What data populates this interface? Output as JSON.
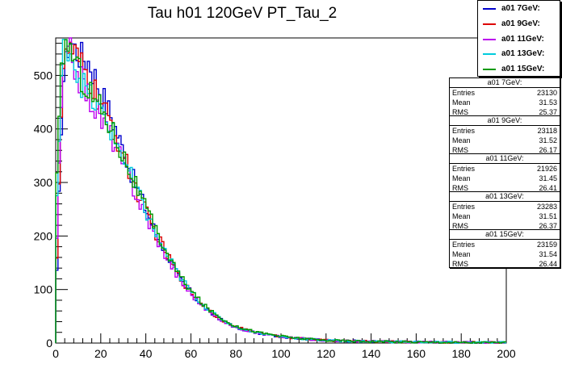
{
  "chart_data": {
    "type": "histogram-step",
    "title": "Tau h01 120GeV PT_Tau_2",
    "xlabel": "",
    "ylabel": "",
    "xlim": [
      0,
      200
    ],
    "ylim": [
      0,
      570
    ],
    "x_ticks": [
      "0",
      "20",
      "40",
      "60",
      "80",
      "100",
      "120",
      "140",
      "160",
      "180",
      "200"
    ],
    "y_ticks": [
      "0",
      "100",
      "200",
      "300",
      "400",
      "500"
    ],
    "x_tick_values": [
      0,
      20,
      40,
      60,
      80,
      100,
      120,
      140,
      160,
      180,
      200
    ],
    "y_tick_values": [
      0,
      100,
      200,
      300,
      400,
      500
    ],
    "bin_width": 1,
    "series": [
      {
        "name": "a01 7GeV:",
        "color": "#0000cc",
        "x": [
          0,
          3,
          6,
          10,
          15,
          20,
          25,
          30,
          35,
          40,
          45,
          50,
          55,
          60,
          65,
          70,
          75,
          80,
          90,
          100,
          110,
          120,
          140,
          160,
          180,
          200
        ],
        "y": [
          60,
          480,
          570,
          540,
          525,
          470,
          420,
          360,
          300,
          250,
          200,
          160,
          120,
          95,
          70,
          52,
          40,
          28,
          18,
          12,
          8,
          5,
          3,
          2,
          1,
          1
        ]
      },
      {
        "name": "a01 9GeV:",
        "color": "#dd0000",
        "x": [
          0,
          3,
          6,
          10,
          15,
          20,
          25,
          30,
          35,
          40,
          45,
          50,
          55,
          60,
          65,
          70,
          75,
          80,
          90,
          100,
          110,
          120,
          140,
          160,
          180,
          200
        ],
        "y": [
          100,
          500,
          555,
          525,
          490,
          445,
          405,
          350,
          295,
          245,
          200,
          160,
          122,
          95,
          72,
          54,
          40,
          30,
          19,
          12,
          8,
          5,
          3,
          2,
          1,
          1
        ]
      },
      {
        "name": "a01 11GeV:",
        "color": "#bb00ee",
        "x": [
          0,
          3,
          6,
          10,
          15,
          20,
          25,
          30,
          35,
          40,
          45,
          50,
          55,
          60,
          65,
          70,
          75,
          80,
          90,
          100,
          110,
          120,
          140,
          160,
          180,
          200
        ],
        "y": [
          140,
          500,
          550,
          500,
          460,
          420,
          385,
          335,
          285,
          235,
          195,
          155,
          118,
          92,
          70,
          52,
          39,
          29,
          18,
          12,
          8,
          5,
          3,
          2,
          1,
          1
        ]
      },
      {
        "name": "a01 13GeV:",
        "color": "#00ccdd",
        "x": [
          0,
          3,
          6,
          10,
          15,
          20,
          25,
          30,
          35,
          40,
          45,
          50,
          55,
          60,
          65,
          70,
          75,
          80,
          90,
          100,
          110,
          120,
          140,
          160,
          180,
          200
        ],
        "y": [
          220,
          540,
          560,
          500,
          460,
          430,
          395,
          345,
          295,
          245,
          200,
          160,
          125,
          97,
          73,
          55,
          41,
          30,
          19,
          12,
          8,
          5,
          3,
          2,
          1,
          1
        ]
      },
      {
        "name": "a01 15GeV:",
        "color": "#009900",
        "x": [
          0,
          3,
          6,
          10,
          15,
          20,
          25,
          30,
          35,
          40,
          45,
          50,
          55,
          60,
          65,
          70,
          75,
          80,
          90,
          100,
          110,
          120,
          140,
          160,
          180,
          200
        ],
        "y": [
          260,
          545,
          560,
          510,
          470,
          440,
          400,
          350,
          300,
          250,
          205,
          163,
          126,
          98,
          74,
          56,
          42,
          31,
          20,
          13,
          8,
          5,
          3,
          2,
          1,
          1
        ]
      }
    ],
    "stats": [
      {
        "title": "a01 7GeV:",
        "entries": "23130",
        "mean": "31.53",
        "rms": "25.37"
      },
      {
        "title": "a01 9GeV:",
        "entries": "23118",
        "mean": "31.52",
        "rms": "26.17"
      },
      {
        "title": "a01 11GeV:",
        "entries": "21926",
        "mean": "31.45",
        "rms": "26.41"
      },
      {
        "title": "a01 13GeV:",
        "entries": "23283",
        "mean": "31.51",
        "rms": "26.37"
      },
      {
        "title": "a01 15GeV:",
        "entries": "23159",
        "mean": "31.54",
        "rms": "26.44"
      }
    ],
    "stats_labels": {
      "entries": "Entries",
      "mean": "Mean",
      "rms": "RMS"
    },
    "legend_position": "top-right",
    "grid": false
  }
}
